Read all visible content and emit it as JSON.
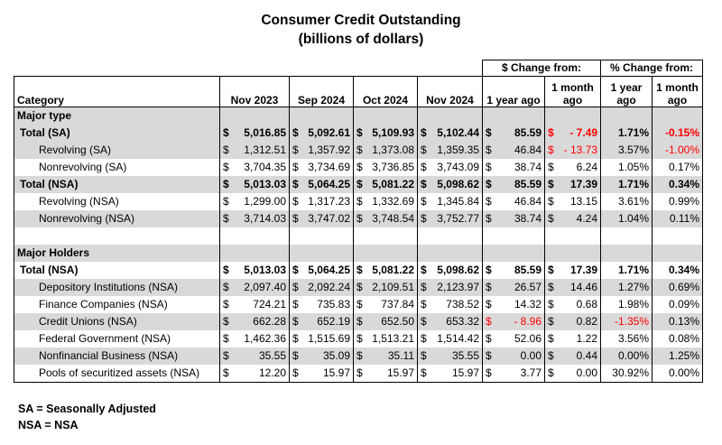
{
  "title": "Consumer Credit Outstanding",
  "subtitle": "(billions of dollars)",
  "group_headers": {
    "dollar_change": "$ Change from:",
    "pct_change": "% Change from:"
  },
  "columns": {
    "category": "Category",
    "nov2023": "Nov 2023",
    "sep2024": "Sep 2024",
    "oct2024": "Oct 2024",
    "nov2024": "Nov 2024",
    "chg_1y": "1 year ago",
    "chg_1m": "1 month ago",
    "pct_1y": "1 year ago",
    "pct_1m": "1 month ago"
  },
  "currency_symbol": "$",
  "negative_color": "#ff0000",
  "shade_color": "#d9d9d9",
  "sections": {
    "major_type": "Major type",
    "major_holders": "Major Holders"
  },
  "rows": [
    {
      "label": "Total (SA)",
      "nov2023": "5,016.85",
      "sep2024": "5,092.61",
      "oct2024": "5,109.93",
      "nov2024": "5,102.44",
      "chg_1y": "85.59",
      "chg_1m": "- 7.49",
      "pct_1y": "1.71%",
      "pct_1m": "-0.15%"
    },
    {
      "label": "Revolving (SA)",
      "nov2023": "1,312.51",
      "sep2024": "1,357.92",
      "oct2024": "1,373.08",
      "nov2024": "1,359.35",
      "chg_1y": "46.84",
      "chg_1m": "- 13.73",
      "pct_1y": "3.57%",
      "pct_1m": "-1.00%"
    },
    {
      "label": "Nonrevolving (SA)",
      "nov2023": "3,704.35",
      "sep2024": "3,734.69",
      "oct2024": "3,736.85",
      "nov2024": "3,743.09",
      "chg_1y": "38.74",
      "chg_1m": "6.24",
      "pct_1y": "1.05%",
      "pct_1m": "0.17%"
    },
    {
      "label": "Total (NSA)",
      "nov2023": "5,013.03",
      "sep2024": "5,064.25",
      "oct2024": "5,081.22",
      "nov2024": "5,098.62",
      "chg_1y": "85.59",
      "chg_1m": "17.39",
      "pct_1y": "1.71%",
      "pct_1m": "0.34%"
    },
    {
      "label": "Revolving (NSA)",
      "nov2023": "1,299.00",
      "sep2024": "1,317.23",
      "oct2024": "1,332.69",
      "nov2024": "1,345.84",
      "chg_1y": "46.84",
      "chg_1m": "13.15",
      "pct_1y": "3.61%",
      "pct_1m": "0.99%"
    },
    {
      "label": "Nonrevolving (NSA)",
      "nov2023": "3,714.03",
      "sep2024": "3,747.02",
      "oct2024": "3,748.54",
      "nov2024": "3,752.77",
      "chg_1y": "38.74",
      "chg_1m": "4.24",
      "pct_1y": "1.04%",
      "pct_1m": "0.11%"
    },
    {
      "label": "Total (NSA)",
      "nov2023": "5,013.03",
      "sep2024": "5,064.25",
      "oct2024": "5,081.22",
      "nov2024": "5,098.62",
      "chg_1y": "85.59",
      "chg_1m": "17.39",
      "pct_1y": "1.71%",
      "pct_1m": "0.34%"
    },
    {
      "label": "Depository Institutions (NSA)",
      "nov2023": "2,097.40",
      "sep2024": "2,092.24",
      "oct2024": "2,109.51",
      "nov2024": "2,123.97",
      "chg_1y": "26.57",
      "chg_1m": "14.46",
      "pct_1y": "1.27%",
      "pct_1m": "0.69%"
    },
    {
      "label": "Finance Companies (NSA)",
      "nov2023": "724.21",
      "sep2024": "735.83",
      "oct2024": "737.84",
      "nov2024": "738.52",
      "chg_1y": "14.32",
      "chg_1m": "0.68",
      "pct_1y": "1.98%",
      "pct_1m": "0.09%"
    },
    {
      "label": "Credit Unions (NSA)",
      "nov2023": "662.28",
      "sep2024": "652.19",
      "oct2024": "652.50",
      "nov2024": "653.32",
      "chg_1y": "- 8.96",
      "chg_1m": "0.82",
      "pct_1y": "-1.35%",
      "pct_1m": "0.13%"
    },
    {
      "label": "Federal Government (NSA)",
      "nov2023": "1,462.36",
      "sep2024": "1,515.69",
      "oct2024": "1,513.21",
      "nov2024": "1,514.42",
      "chg_1y": "52.06",
      "chg_1m": "1.22",
      "pct_1y": "3.56%",
      "pct_1m": "0.08%"
    },
    {
      "label": "Nonfinancial Business (NSA)",
      "nov2023": "35.55",
      "sep2024": "35.09",
      "oct2024": "35.11",
      "nov2024": "35.55",
      "chg_1y": "0.00",
      "chg_1m": "0.44",
      "pct_1y": "0.00%",
      "pct_1m": "1.25%"
    },
    {
      "label": "Pools of securitized assets (NSA)",
      "nov2023": "12.20",
      "sep2024": "15.97",
      "oct2024": "15.97",
      "nov2024": "15.97",
      "chg_1y": "3.77",
      "chg_1m": "0.00",
      "pct_1y": "30.92%",
      "pct_1m": "0.00%"
    }
  ],
  "footnotes": [
    "SA = Seasonally Adjusted",
    "NSA = NSA"
  ]
}
